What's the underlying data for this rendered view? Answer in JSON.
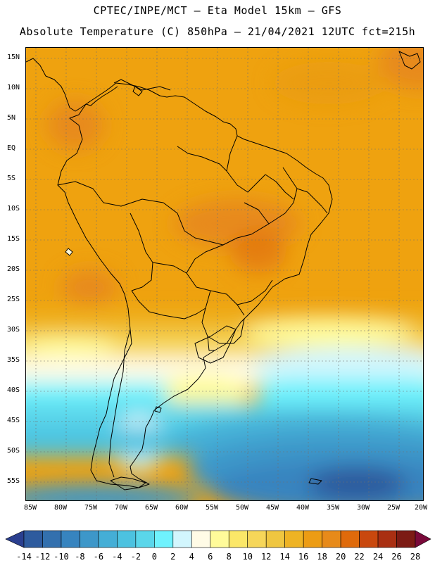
{
  "header": {
    "line1": "CPTEC/INPE/MCT –  Eta Model 15km – GFS",
    "line2": "Absolute Temperature (C) 850hPa – 21/04/2021 12UTC fct=215h"
  },
  "axes": {
    "lat_labels": [
      "15N",
      "10N",
      "5N",
      "EQ",
      "5S",
      "10S",
      "15S",
      "20S",
      "25S",
      "30S",
      "35S",
      "40S",
      "45S",
      "50S",
      "55S"
    ],
    "lon_labels": [
      "85W",
      "80W",
      "75W",
      "70W",
      "65W",
      "60W",
      "55W",
      "50W",
      "45W",
      "40W",
      "35W",
      "30W",
      "25W",
      "20W"
    ]
  },
  "colorbar": {
    "labels": [
      "-14",
      "-12",
      "-10",
      "-8",
      "-6",
      "-4",
      "-2",
      "0",
      "2",
      "4",
      "6",
      "8",
      "10",
      "12",
      "14",
      "16",
      "18",
      "20",
      "22",
      "24",
      "26",
      "28"
    ],
    "colors": [
      "#2a3f8f",
      "#2e5b9e",
      "#3370ae",
      "#3784bf",
      "#3d97c9",
      "#44aed6",
      "#4cc2e0",
      "#5ad6ea",
      "#6ff2fd",
      "#d2f6fd",
      "#fffbe6",
      "#fffb9a",
      "#fbe768",
      "#f6d659",
      "#efc640",
      "#eeb324",
      "#ec9c14",
      "#e78a1a",
      "#df6a0b",
      "#c9480e",
      "#a92f12",
      "#7c1b14",
      "#7a0a3a"
    ]
  },
  "legend_scale": {
    "min": -14,
    "max": 28,
    "step": 2
  }
}
